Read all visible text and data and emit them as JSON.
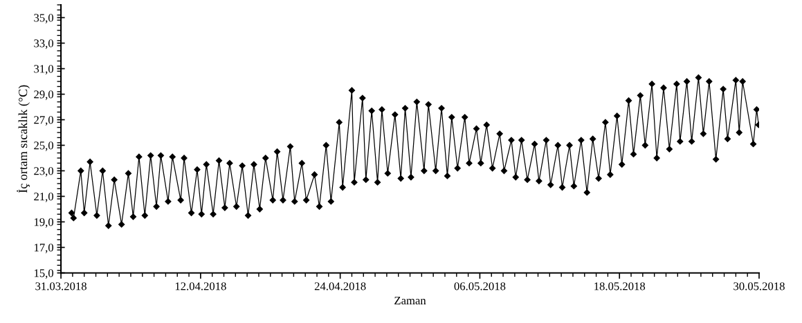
{
  "chart_data": {
    "type": "line",
    "xlabel": "Zaman",
    "ylabel": "İç ortam sıcaklık (°C)",
    "xlim": [
      "2018-03-31",
      "2018-05-30"
    ],
    "xticks": [
      {
        "value": "2018-03-31",
        "label": "31.03.2018"
      },
      {
        "value": "2018-04-12",
        "label": "12.04.2018"
      },
      {
        "value": "2018-04-24",
        "label": "24.04.2018"
      },
      {
        "value": "2018-05-06",
        "label": "06.05.2018"
      },
      {
        "value": "2018-05-18",
        "label": "18.05.2018"
      },
      {
        "value": "2018-05-30",
        "label": "30.05.2018"
      }
    ],
    "ylim": [
      15,
      36
    ],
    "yticks": [
      {
        "value": 15,
        "label": "15,0"
      },
      {
        "value": 17,
        "label": "17,0"
      },
      {
        "value": 19,
        "label": "19,0"
      },
      {
        "value": 21,
        "label": "21,0"
      },
      {
        "value": 23,
        "label": "23,0"
      },
      {
        "value": 25,
        "label": "25,0"
      },
      {
        "value": 27,
        "label": "27,0"
      },
      {
        "value": 29,
        "label": "29,0"
      },
      {
        "value": 31,
        "label": "31,0"
      },
      {
        "value": 33,
        "label": "33,0"
      },
      {
        "value": 35,
        "label": "35,0"
      }
    ],
    "marker": "diamond",
    "line_style": "solid",
    "series": [
      {
        "color": "#000000",
        "x": [
          "2018-03-31T22:00",
          "2018-04-01T02:00",
          "2018-04-01T17:00",
          "2018-04-02T00:00",
          "2018-04-02T12:00",
          "2018-04-03T02:00",
          "2018-04-03T14:00",
          "2018-04-04T02:00",
          "2018-04-04T14:00",
          "2018-04-05T05:00",
          "2018-04-05T19:00",
          "2018-04-06T05:00",
          "2018-04-06T17:00",
          "2018-04-07T05:00",
          "2018-04-07T17:00",
          "2018-04-08T05:00",
          "2018-04-08T14:00",
          "2018-04-09T05:00",
          "2018-04-09T14:00",
          "2018-04-10T07:00",
          "2018-04-10T14:00",
          "2018-04-11T05:00",
          "2018-04-11T17:00",
          "2018-04-12T02:00",
          "2018-04-12T12:00",
          "2018-04-13T02:00",
          "2018-04-13T14:00",
          "2018-04-14T02:00",
          "2018-04-14T12:00",
          "2018-04-15T02:00",
          "2018-04-15T14:00",
          "2018-04-16T02:00",
          "2018-04-16T14:00",
          "2018-04-17T02:00",
          "2018-04-17T14:00",
          "2018-04-18T05:00",
          "2018-04-18T14:00",
          "2018-04-19T02:00",
          "2018-04-19T17:00",
          "2018-04-20T02:00",
          "2018-04-20T17:00",
          "2018-04-21T02:00",
          "2018-04-21T19:00",
          "2018-04-22T05:00",
          "2018-04-22T19:00",
          "2018-04-23T05:00",
          "2018-04-23T22:00",
          "2018-04-24T05:00",
          "2018-04-25T00:00",
          "2018-04-25T05:00",
          "2018-04-25T22:00",
          "2018-04-26T05:00",
          "2018-04-26T17:00",
          "2018-04-27T05:00",
          "2018-04-27T14:00",
          "2018-04-28T02:00",
          "2018-04-28T17:00",
          "2018-04-29T05:00",
          "2018-04-29T14:00",
          "2018-04-30T02:00",
          "2018-04-30T14:00",
          "2018-05-01T05:00",
          "2018-05-01T14:00",
          "2018-05-02T05:00",
          "2018-05-02T17:00",
          "2018-05-03T05:00",
          "2018-05-03T14:00",
          "2018-05-04T02:00",
          "2018-05-04T17:00",
          "2018-05-05T02:00",
          "2018-05-05T17:00",
          "2018-05-06T02:00",
          "2018-05-06T14:00",
          "2018-05-07T02:00",
          "2018-05-07T17:00",
          "2018-05-08T02:00",
          "2018-05-08T17:00",
          "2018-05-09T02:00",
          "2018-05-09T14:00",
          "2018-05-10T02:00",
          "2018-05-10T17:00",
          "2018-05-11T02:00",
          "2018-05-11T17:00",
          "2018-05-12T02:00",
          "2018-05-12T17:00",
          "2018-05-13T02:00",
          "2018-05-13T17:00",
          "2018-05-14T02:00",
          "2018-05-14T17:00",
          "2018-05-15T05:00",
          "2018-05-15T17:00",
          "2018-05-16T05:00",
          "2018-05-16T19:00",
          "2018-05-17T05:00",
          "2018-05-17T19:00",
          "2018-05-18T05:00",
          "2018-05-18T19:00",
          "2018-05-19T05:00",
          "2018-05-19T19:00",
          "2018-05-20T05:00",
          "2018-05-20T19:00",
          "2018-05-21T05:00",
          "2018-05-21T19:00",
          "2018-05-22T07:00",
          "2018-05-22T22:00",
          "2018-05-23T05:00",
          "2018-05-23T19:00",
          "2018-05-24T05:00",
          "2018-05-24T19:00",
          "2018-05-25T05:00",
          "2018-05-25T17:00",
          "2018-05-26T07:00",
          "2018-05-26T22:00",
          "2018-05-27T07:00",
          "2018-05-28T00:00",
          "2018-05-28T07:00",
          "2018-05-28T14:00",
          "2018-05-29T12:00",
          "2018-05-29T19:00",
          "2018-05-29T23:00"
        ],
        "values": [
          19.7,
          19.3,
          23.0,
          19.7,
          23.7,
          19.5,
          23.0,
          18.7,
          22.3,
          18.8,
          22.8,
          19.4,
          24.1,
          19.5,
          24.2,
          20.2,
          24.2,
          20.6,
          24.1,
          20.7,
          24.0,
          19.7,
          23.1,
          19.6,
          23.5,
          19.6,
          23.8,
          20.1,
          23.6,
          20.2,
          23.4,
          19.5,
          23.5,
          20.0,
          24.0,
          20.7,
          24.5,
          20.7,
          24.9,
          20.6,
          23.6,
          20.7,
          22.7,
          20.2,
          25.0,
          20.6,
          26.8,
          21.7,
          29.3,
          22.1,
          28.7,
          22.3,
          27.7,
          22.1,
          27.8,
          22.8,
          27.4,
          22.4,
          27.9,
          22.5,
          28.4,
          23.0,
          28.2,
          23.0,
          27.9,
          22.6,
          27.2,
          23.2,
          27.2,
          23.6,
          26.3,
          23.6,
          26.6,
          23.2,
          25.9,
          23.0,
          25.4,
          22.5,
          25.4,
          22.3,
          25.1,
          22.2,
          25.4,
          21.9,
          25.0,
          21.7,
          25.0,
          21.8,
          25.4,
          21.3,
          25.5,
          22.4,
          26.8,
          22.7,
          27.3,
          23.5,
          28.5,
          24.3,
          28.9,
          25.0,
          29.8,
          24.0,
          29.5,
          24.7,
          29.8,
          25.3,
          30.0,
          25.3,
          30.3,
          25.9,
          30.0,
          23.9,
          29.4,
          25.5,
          30.1,
          26.0,
          30.0,
          25.1,
          27.8,
          26.6
        ]
      }
    ]
  }
}
